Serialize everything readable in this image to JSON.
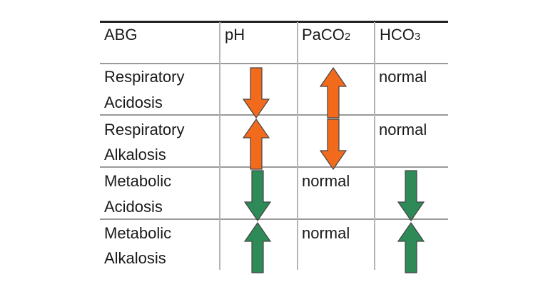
{
  "table": {
    "headers": {
      "abg": "ABG",
      "ph": "pH",
      "paco2": "PaCO",
      "paco2_sub": "2",
      "hco3": "HCO",
      "hco3_sub": "3"
    },
    "rows": [
      {
        "condition_line1": "Respiratory",
        "condition_line2": "Acidosis",
        "ph": "down",
        "paco2": "up",
        "hco3": "normal"
      },
      {
        "condition_line1": "Respiratory",
        "condition_line2": "Alkalosis",
        "ph": "up",
        "paco2": "down",
        "hco3": "normal"
      },
      {
        "condition_line1": "Metabolic",
        "condition_line2": "Acidosis",
        "ph": "down",
        "paco2": "normal",
        "hco3": "down"
      },
      {
        "condition_line1": "Metabolic",
        "condition_line2": "Alkalosis",
        "ph": "up",
        "paco2": "normal",
        "hco3": "up"
      }
    ]
  },
  "colors": {
    "respiratory_arrow": "#f26b1d",
    "metabolic_arrow": "#2e8b57",
    "arrow_stroke": "#444444"
  },
  "icons": {
    "up": "arrow-up-icon",
    "down": "arrow-down-icon"
  }
}
